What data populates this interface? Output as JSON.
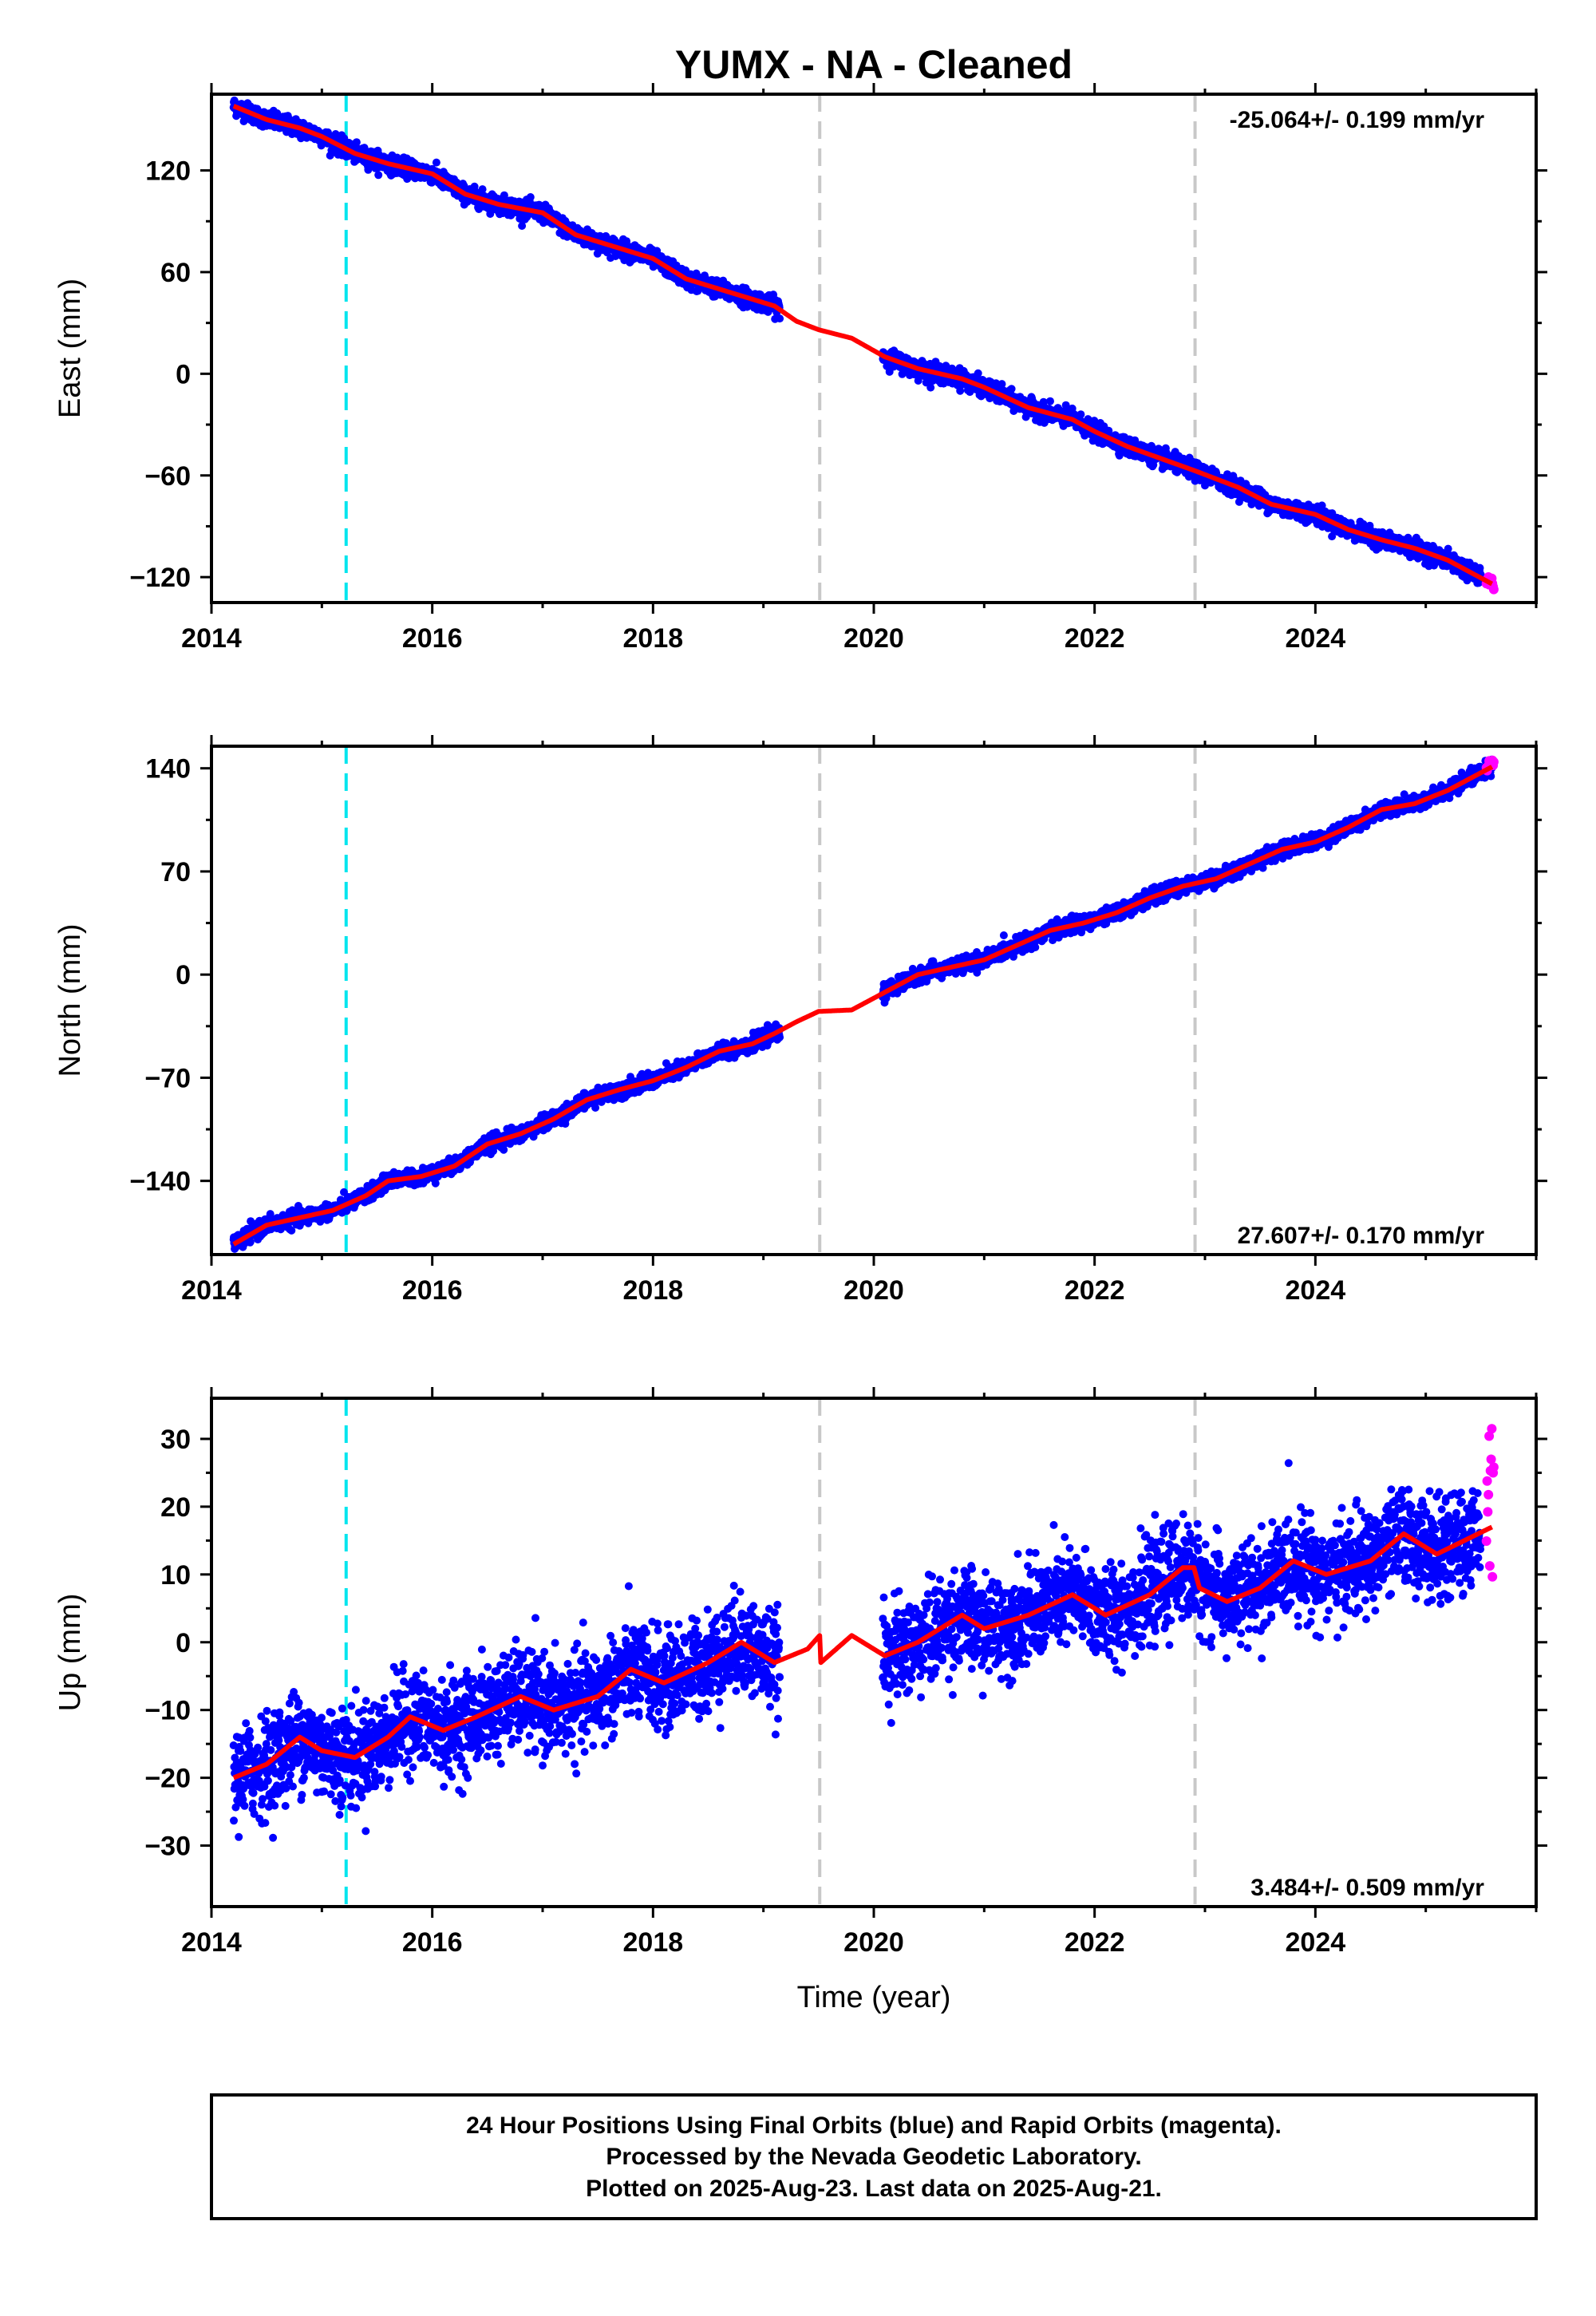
{
  "chart_data": [
    {
      "type": "scatter",
      "title": "YUMX  - NA - Cleaned",
      "ylabel": "East (mm)",
      "xlabel": "",
      "xlim": [
        2014.0,
        2026.0
      ],
      "ylim": [
        -135,
        165
      ],
      "xticks": [
        2014,
        2016,
        2018,
        2020,
        2022,
        2024
      ],
      "yticks": [
        -120,
        -60,
        0,
        60,
        120
      ],
      "ytick_labels": [
        "−120",
        "−60",
        "0",
        "60",
        "120"
      ],
      "rate_label": "-25.064+/- 0.199 mm/yr",
      "rate_position": "top-right",
      "events": [
        {
          "x": 2015.22,
          "color": "#00e5ee",
          "style": "dashed"
        },
        {
          "x": 2019.51,
          "color": "#c8c8c8",
          "style": "dashed"
        },
        {
          "x": 2022.91,
          "color": "#c8c8c8",
          "style": "dashed"
        }
      ],
      "data_gap": [
        2019.15,
        2020.08
      ],
      "series": [
        {
          "color": "#0000ff",
          "marker": "dot",
          "noise_mm": 2.5,
          "x": [
            2014.2,
            2014.5,
            2014.8,
            2015.0,
            2015.3,
            2015.6,
            2016.0,
            2016.3,
            2016.6,
            2017.0,
            2017.3,
            2017.6,
            2018.0,
            2018.3,
            2018.6,
            2019.1,
            2020.1,
            2020.4,
            2020.8,
            2021.0,
            2021.4,
            2021.8,
            2022.0,
            2022.3,
            2022.6,
            2022.9,
            2023.3,
            2023.6,
            2024.0,
            2024.3,
            2024.6,
            2024.9,
            2025.2,
            2025.5
          ],
          "y": [
            158,
            150,
            145,
            140,
            130,
            124,
            118,
            106,
            100,
            95,
            82,
            76,
            68,
            56,
            50,
            40,
            10,
            3,
            -3,
            -8,
            -20,
            -27,
            -34,
            -43,
            -50,
            -57,
            -67,
            -77,
            -83,
            -92,
            -98,
            -103,
            -110,
            -120
          ]
        },
        {
          "color": "#ff00ff",
          "marker": "dot",
          "noise_mm": 1.5,
          "x": [
            2025.55,
            2025.6,
            2025.62
          ],
          "y": [
            -124,
            -123,
            -125
          ]
        },
        {
          "color": "#ff0000",
          "marker": "line",
          "x": [
            2014.2,
            2014.5,
            2014.8,
            2015.0,
            2015.3,
            2015.6,
            2016.0,
            2016.3,
            2016.6,
            2017.0,
            2017.3,
            2017.6,
            2018.0,
            2018.3,
            2018.6,
            2019.1,
            2019.3,
            2019.5,
            2019.8,
            2020.1,
            2020.4,
            2020.8,
            2021.0,
            2021.4,
            2021.8,
            2022.0,
            2022.3,
            2022.6,
            2022.9,
            2023.3,
            2023.6,
            2024.0,
            2024.3,
            2024.6,
            2024.9,
            2025.2,
            2025.6
          ],
          "y": [
            158,
            150,
            145,
            140,
            130,
            124,
            118,
            106,
            100,
            95,
            82,
            76,
            68,
            56,
            50,
            40,
            31,
            26,
            21,
            10,
            3,
            -3,
            -8,
            -20,
            -27,
            -34,
            -43,
            -50,
            -57,
            -67,
            -77,
            -83,
            -92,
            -98,
            -103,
            -110,
            -124
          ]
        }
      ]
    },
    {
      "type": "scatter",
      "title": "",
      "ylabel": "North (mm)",
      "xlabel": "",
      "xlim": [
        2014.0,
        2026.0
      ],
      "ylim": [
        -190,
        155
      ],
      "xticks": [
        2014,
        2016,
        2018,
        2020,
        2022,
        2024
      ],
      "yticks": [
        -140,
        -70,
        0,
        70,
        140
      ],
      "ytick_labels": [
        "−140",
        "−70",
        "0",
        "70",
        "140"
      ],
      "rate_label": "27.607+/- 0.170 mm/yr",
      "rate_position": "bottom-right",
      "events": [
        {
          "x": 2015.22,
          "color": "#00e5ee",
          "style": "dashed"
        },
        {
          "x": 2019.51,
          "color": "#c8c8c8",
          "style": "dashed"
        },
        {
          "x": 2022.91,
          "color": "#c8c8c8",
          "style": "dashed"
        }
      ],
      "data_gap": [
        2019.15,
        2020.08
      ],
      "series": [
        {
          "color": "#0000ff",
          "marker": "dot",
          "noise_mm": 2.5,
          "x": [
            2014.2,
            2014.5,
            2014.8,
            2015.1,
            2015.4,
            2015.6,
            2015.9,
            2016.2,
            2016.5,
            2016.8,
            2017.1,
            2017.4,
            2017.7,
            2018.0,
            2018.3,
            2018.6,
            2018.9,
            2019.1,
            2020.1,
            2020.4,
            2020.7,
            2021.0,
            2021.3,
            2021.6,
            2021.9,
            2022.2,
            2022.5,
            2022.8,
            2023.1,
            2023.4,
            2023.7,
            2024.0,
            2024.3,
            2024.6,
            2024.9,
            2025.2,
            2025.6
          ],
          "y": [
            -183,
            -170,
            -165,
            -160,
            -150,
            -140,
            -137,
            -130,
            -115,
            -108,
            -98,
            -85,
            -78,
            -72,
            -63,
            -52,
            -47,
            -40,
            -12,
            0,
            5,
            10,
            20,
            30,
            35,
            42,
            52,
            60,
            65,
            75,
            85,
            90,
            100,
            112,
            116,
            125,
            141
          ]
        },
        {
          "color": "#ff00ff",
          "marker": "dot",
          "noise_mm": 1.5,
          "x": [
            2025.55,
            2025.6,
            2025.62
          ],
          "y": [
            141,
            143,
            142
          ]
        },
        {
          "color": "#ff0000",
          "marker": "line",
          "x": [
            2014.2,
            2014.5,
            2014.8,
            2015.1,
            2015.4,
            2015.6,
            2015.9,
            2016.2,
            2016.5,
            2016.8,
            2017.1,
            2017.4,
            2017.7,
            2018.0,
            2018.3,
            2018.6,
            2018.9,
            2019.1,
            2019.3,
            2019.5,
            2019.8,
            2020.1,
            2020.4,
            2020.7,
            2021.0,
            2021.3,
            2021.6,
            2021.9,
            2022.2,
            2022.5,
            2022.8,
            2023.1,
            2023.4,
            2023.7,
            2024.0,
            2024.3,
            2024.6,
            2024.9,
            2025.2,
            2025.6
          ],
          "y": [
            -183,
            -170,
            -165,
            -160,
            -150,
            -140,
            -137,
            -130,
            -115,
            -108,
            -98,
            -85,
            -78,
            -72,
            -63,
            -52,
            -47,
            -40,
            -32,
            -25,
            -24,
            -12,
            0,
            5,
            10,
            20,
            30,
            35,
            42,
            52,
            60,
            65,
            75,
            85,
            90,
            100,
            112,
            116,
            125,
            141
          ]
        }
      ]
    },
    {
      "type": "scatter",
      "title": "",
      "ylabel": "Up (mm)",
      "xlabel": "Time (year)",
      "xlim": [
        2014.0,
        2026.0
      ],
      "ylim": [
        -39,
        36
      ],
      "xticks": [
        2014,
        2016,
        2018,
        2020,
        2022,
        2024
      ],
      "yticks": [
        -30,
        -20,
        -10,
        0,
        10,
        20,
        30
      ],
      "ytick_labels": [
        "−30",
        "−20",
        "−10",
        "0",
        "10",
        "20",
        "30"
      ],
      "rate_label": "3.484+/- 0.509 mm/yr",
      "rate_position": "bottom-right",
      "events": [
        {
          "x": 2015.22,
          "color": "#00e5ee",
          "style": "dashed"
        },
        {
          "x": 2019.51,
          "color": "#c8c8c8",
          "style": "dashed"
        },
        {
          "x": 2022.91,
          "color": "#c8c8c8",
          "style": "dashed"
        }
      ],
      "data_gap": [
        2019.15,
        2020.08
      ],
      "series": [
        {
          "color": "#0000ff",
          "marker": "dot",
          "noise_mm": 3.5,
          "x": [
            2014.2,
            2014.5,
            2014.8,
            2015.0,
            2015.3,
            2015.6,
            2015.8,
            2016.1,
            2016.4,
            2016.8,
            2017.1,
            2017.5,
            2017.8,
            2018.1,
            2018.5,
            2018.8,
            2019.1,
            2020.1,
            2020.4,
            2020.8,
            2021.0,
            2021.4,
            2021.8,
            2022.1,
            2022.5,
            2022.8,
            2022.95,
            2023.2,
            2023.5,
            2023.8,
            2024.1,
            2024.5,
            2024.8,
            2025.1,
            2025.5
          ],
          "y": [
            -20,
            -18,
            -14,
            -16,
            -17,
            -14,
            -11,
            -13,
            -11,
            -8,
            -10,
            -8,
            -4,
            -6,
            -3,
            0,
            -3,
            -2,
            0,
            4,
            2,
            4,
            7,
            4,
            7,
            11,
            9,
            6,
            8,
            12,
            10,
            12,
            16,
            13,
            16
          ]
        },
        {
          "color": "#ff00ff",
          "marker": "dot",
          "noise_mm": 7,
          "x": [
            2025.55,
            2025.58,
            2025.6,
            2025.62
          ],
          "y": [
            22,
            24,
            26,
            25
          ]
        },
        {
          "color": "#ff0000",
          "marker": "line",
          "x": [
            2014.2,
            2014.5,
            2014.8,
            2015.0,
            2015.3,
            2015.6,
            2015.8,
            2016.1,
            2016.4,
            2016.8,
            2017.1,
            2017.5,
            2017.8,
            2018.1,
            2018.5,
            2018.8,
            2019.1,
            2019.4,
            2019.51,
            2019.52,
            2019.8,
            2020.1,
            2020.4,
            2020.8,
            2021.0,
            2021.4,
            2021.8,
            2022.1,
            2022.5,
            2022.8,
            2022.9,
            2022.95,
            2023.2,
            2023.5,
            2023.8,
            2024.1,
            2024.5,
            2024.8,
            2025.1,
            2025.6
          ],
          "y": [
            -20,
            -18,
            -14,
            -16,
            -17,
            -14,
            -11,
            -13,
            -11,
            -8,
            -10,
            -8,
            -4,
            -6,
            -3,
            0,
            -3,
            -1,
            1,
            -3,
            1,
            -2,
            0,
            4,
            2,
            4,
            7,
            4,
            7,
            11,
            11,
            8,
            6,
            8,
            12,
            10,
            12,
            16,
            13,
            17
          ]
        }
      ]
    }
  ],
  "footer": {
    "line1": "24 Hour Positions Using Final Orbits (blue) and Rapid Orbits (magenta).",
    "line2": "Processed by the Nevada Geodetic Laboratory.",
    "line3": "Plotted on 2025-Aug-23. Last data on 2025-Aug-21."
  }
}
